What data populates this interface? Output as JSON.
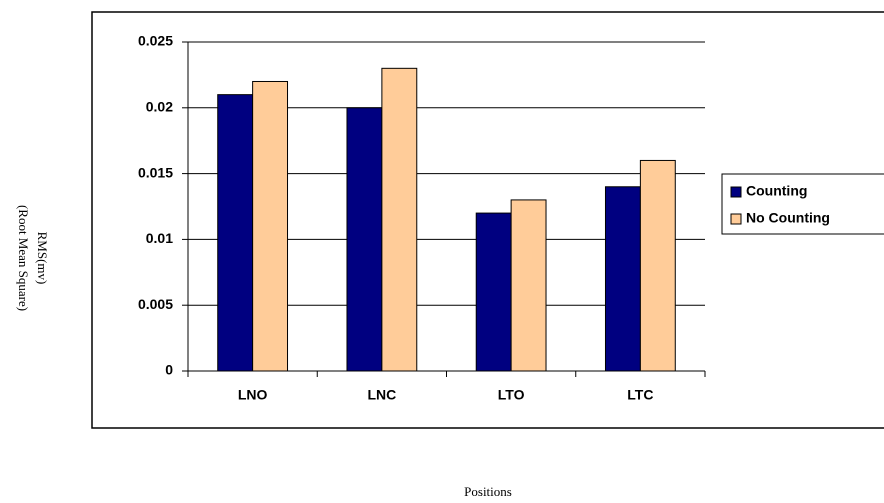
{
  "chart_data": {
    "type": "bar",
    "x_label": "Positions",
    "y_label": [
      "RMS(mv)",
      "(Root Mean Square)"
    ],
    "categories": [
      "LNO",
      "LNC",
      "LTO",
      "LTC"
    ],
    "series": [
      {
        "name": "Counting",
        "color": "#000080",
        "values": [
          0.021,
          0.02,
          0.012,
          0.014
        ]
      },
      {
        "name": "No Counting",
        "color": "#ffcc99",
        "values": [
          0.022,
          0.023,
          0.013,
          0.016
        ]
      }
    ],
    "ylim": [
      0,
      0.025
    ],
    "yticks": [
      0,
      0.005,
      0.01,
      0.015,
      0.02,
      0.025
    ],
    "grid": true,
    "legend": "right"
  }
}
